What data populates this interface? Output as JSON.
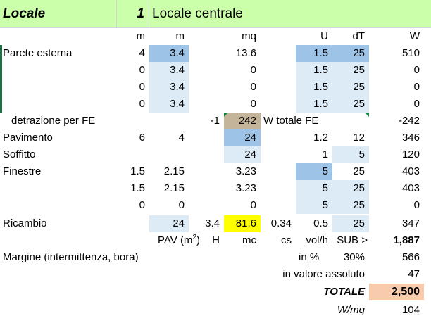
{
  "header": {
    "title": "Locale",
    "number": "1",
    "name": "Locale centrale"
  },
  "units": {
    "m1": "m",
    "m2": "m",
    "mq": "mq",
    "U": "U",
    "dT": "dT",
    "W": "W"
  },
  "walls": [
    {
      "label": "Parete esterna",
      "a": "4",
      "b": "3.4",
      "area": "13.6",
      "u": "1.5",
      "dt": "25",
      "w": "510"
    },
    {
      "label": "",
      "a": "0",
      "b": "3.4",
      "area": "0",
      "u": "1.5",
      "dt": "25",
      "w": "0"
    },
    {
      "label": "",
      "a": "0",
      "b": "3.4",
      "area": "0",
      "u": "1.5",
      "dt": "25",
      "w": "0"
    },
    {
      "label": "",
      "a": "0",
      "b": "3.4",
      "area": "0",
      "u": "1.5",
      "dt": "25",
      "w": "0"
    }
  ],
  "detraction": {
    "label": "detrazione per FE",
    "factor": "-1",
    "area": "242",
    "note": "W totale FE",
    "w": "-242"
  },
  "floor": {
    "label": "Pavimento",
    "a": "6",
    "b": "4",
    "area": "24",
    "u": "1.2",
    "dt": "12",
    "w": "346"
  },
  "ceiling": {
    "label": "Soffitto",
    "area": "24",
    "u": "1",
    "dt": "5",
    "w": "120"
  },
  "windows": [
    {
      "label": "Finestre",
      "a": "1.5",
      "b": "2.15",
      "area": "3.23",
      "u": "5",
      "dt": "25",
      "w": "403"
    },
    {
      "label": "",
      "a": "1.5",
      "b": "2.15",
      "area": "3.23",
      "u": "5",
      "dt": "25",
      "w": "403"
    },
    {
      "label": "",
      "a": "0",
      "b": "0",
      "area": "0",
      "u": "5",
      "dt": "25",
      "w": "0"
    }
  ],
  "ricambio": {
    "label": "Ricambio",
    "pav": "24",
    "h": "3.4",
    "mc": "81.6",
    "cs": "0.34",
    "volh": "0.5",
    "dt": "25",
    "w": "347"
  },
  "ricambio_units": {
    "pav": "PAV (m",
    "sup": "2",
    "close": ")",
    "h": "H",
    "mc": "mc",
    "cs": "cs",
    "volh": "vol/h",
    "sub": "SUB >",
    "subtotal": "1,887"
  },
  "margin": {
    "label": "Margine (intermittenza, bora)",
    "unit": "in %",
    "pct": "30%",
    "w": "566"
  },
  "absolute": {
    "label": "in valore assoluto",
    "w": "47"
  },
  "total": {
    "label": "TOTALE",
    "value": "2,500"
  },
  "per_sqm": {
    "label": "W/mq",
    "value": "104"
  }
}
